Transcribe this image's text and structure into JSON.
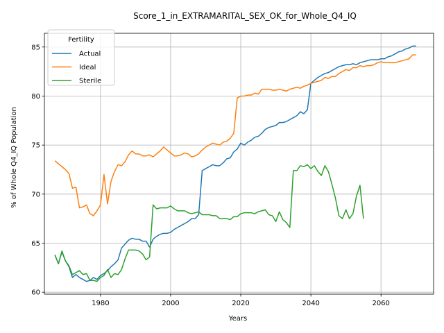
{
  "chart_data": {
    "type": "line",
    "title": "Score_1_in_EXTRAMARITAL_SEX_OK_for_Whole_Q4_IQ",
    "xlabel": "Years",
    "ylabel": "% of Whole Q4_IQ Population",
    "xlim": [
      1964,
      2075
    ],
    "ylim": [
      59.8,
      86.4
    ],
    "xticks": [
      1980,
      2000,
      2020,
      2040,
      2060
    ],
    "yticks": [
      60,
      65,
      70,
      75,
      80,
      85
    ],
    "grid": true,
    "legend": {
      "title": "Fertility",
      "position": "top-left"
    },
    "series": [
      {
        "name": "Actual",
        "color": "#1f77b4",
        "points": [
          [
            1967,
            63.8
          ],
          [
            1968,
            62.9
          ],
          [
            1969,
            64.1
          ],
          [
            1970,
            63.2
          ],
          [
            1971,
            62.6
          ],
          [
            1972,
            61.5
          ],
          [
            1973,
            61.8
          ],
          [
            1974,
            61.5
          ],
          [
            1975,
            61.3
          ],
          [
            1976,
            61.1
          ],
          [
            1977,
            61.2
          ],
          [
            1978,
            61.5
          ],
          [
            1979,
            61.3
          ],
          [
            1980,
            61.7
          ],
          [
            1981,
            61.9
          ],
          [
            1982,
            62.2
          ],
          [
            1983,
            62.6
          ],
          [
            1984,
            62.9
          ],
          [
            1985,
            63.3
          ],
          [
            1986,
            64.5
          ],
          [
            1987,
            64.9
          ],
          [
            1988,
            65.3
          ],
          [
            1989,
            65.5
          ],
          [
            1990,
            65.4
          ],
          [
            1991,
            65.4
          ],
          [
            1992,
            65.2
          ],
          [
            1993,
            65.2
          ],
          [
            1994,
            64.6
          ],
          [
            1995,
            65.4
          ],
          [
            1996,
            65.7
          ],
          [
            1997,
            65.9
          ],
          [
            1998,
            66.0
          ],
          [
            1999,
            66.0
          ],
          [
            2000,
            66.1
          ],
          [
            2001,
            66.4
          ],
          [
            2002,
            66.6
          ],
          [
            2003,
            66.8
          ],
          [
            2004,
            67.0
          ],
          [
            2005,
            67.2
          ],
          [
            2006,
            67.5
          ],
          [
            2007,
            67.5
          ],
          [
            2008,
            67.9
          ],
          [
            2009,
            72.4
          ],
          [
            2010,
            72.6
          ],
          [
            2011,
            72.8
          ],
          [
            2012,
            73.0
          ],
          [
            2013,
            72.9
          ],
          [
            2014,
            72.9
          ],
          [
            2015,
            73.2
          ],
          [
            2016,
            73.6
          ],
          [
            2017,
            73.7
          ],
          [
            2018,
            74.3
          ],
          [
            2019,
            74.6
          ],
          [
            2020,
            75.2
          ],
          [
            2021,
            75.0
          ],
          [
            2022,
            75.3
          ],
          [
            2023,
            75.5
          ],
          [
            2024,
            75.8
          ],
          [
            2025,
            75.9
          ],
          [
            2026,
            76.2
          ],
          [
            2027,
            76.6
          ],
          [
            2028,
            76.8
          ],
          [
            2029,
            76.9
          ],
          [
            2030,
            77.0
          ],
          [
            2031,
            77.3
          ],
          [
            2032,
            77.3
          ],
          [
            2033,
            77.4
          ],
          [
            2034,
            77.6
          ],
          [
            2035,
            77.8
          ],
          [
            2036,
            78.0
          ],
          [
            2037,
            78.4
          ],
          [
            2038,
            78.2
          ],
          [
            2039,
            78.6
          ],
          [
            2040,
            81.3
          ],
          [
            2041,
            81.6
          ],
          [
            2042,
            81.9
          ],
          [
            2043,
            82.1
          ],
          [
            2044,
            82.3
          ],
          [
            2045,
            82.4
          ],
          [
            2046,
            82.6
          ],
          [
            2047,
            82.8
          ],
          [
            2048,
            83.0
          ],
          [
            2049,
            83.1
          ],
          [
            2050,
            83.2
          ],
          [
            2051,
            83.2
          ],
          [
            2052,
            83.3
          ],
          [
            2053,
            83.2
          ],
          [
            2054,
            83.4
          ],
          [
            2055,
            83.5
          ],
          [
            2056,
            83.6
          ],
          [
            2057,
            83.7
          ],
          [
            2058,
            83.7
          ],
          [
            2059,
            83.7
          ],
          [
            2060,
            83.8
          ],
          [
            2061,
            83.8
          ],
          [
            2062,
            84.0
          ],
          [
            2063,
            84.1
          ],
          [
            2064,
            84.3
          ],
          [
            2065,
            84.5
          ],
          [
            2066,
            84.6
          ],
          [
            2067,
            84.8
          ],
          [
            2068,
            84.9
          ],
          [
            2069,
            85.1
          ],
          [
            2070,
            85.1
          ]
        ]
      },
      {
        "name": "Ideal",
        "color": "#ff7f0e",
        "points": [
          [
            1967,
            73.4
          ],
          [
            1968,
            73.1
          ],
          [
            1969,
            72.8
          ],
          [
            1970,
            72.5
          ],
          [
            1971,
            72.1
          ],
          [
            1972,
            70.6
          ],
          [
            1973,
            70.7
          ],
          [
            1974,
            68.6
          ],
          [
            1975,
            68.7
          ],
          [
            1976,
            68.9
          ],
          [
            1977,
            68.0
          ],
          [
            1978,
            67.8
          ],
          [
            1979,
            68.3
          ],
          [
            1980,
            68.9
          ],
          [
            1981,
            72.0
          ],
          [
            1982,
            69.0
          ],
          [
            1983,
            71.3
          ],
          [
            1984,
            72.3
          ],
          [
            1985,
            73.0
          ],
          [
            1986,
            72.9
          ],
          [
            1987,
            73.3
          ],
          [
            1988,
            74.0
          ],
          [
            1989,
            74.4
          ],
          [
            1990,
            74.1
          ],
          [
            1991,
            74.1
          ],
          [
            1992,
            73.9
          ],
          [
            1993,
            73.9
          ],
          [
            1994,
            74.0
          ],
          [
            1995,
            73.8
          ],
          [
            1996,
            74.1
          ],
          [
            1997,
            74.4
          ],
          [
            1998,
            74.8
          ],
          [
            1999,
            74.5
          ],
          [
            2000,
            74.2
          ],
          [
            2001,
            73.9
          ],
          [
            2002,
            73.9
          ],
          [
            2003,
            74.0
          ],
          [
            2004,
            74.2
          ],
          [
            2005,
            74.1
          ],
          [
            2006,
            73.8
          ],
          [
            2007,
            73.9
          ],
          [
            2008,
            74.1
          ],
          [
            2009,
            74.5
          ],
          [
            2010,
            74.8
          ],
          [
            2011,
            75.0
          ],
          [
            2012,
            75.2
          ],
          [
            2013,
            75.1
          ],
          [
            2014,
            75.0
          ],
          [
            2015,
            75.3
          ],
          [
            2016,
            75.4
          ],
          [
            2017,
            75.7
          ],
          [
            2018,
            76.2
          ],
          [
            2019,
            79.8
          ],
          [
            2020,
            80.0
          ],
          [
            2021,
            80.0
          ],
          [
            2022,
            80.1
          ],
          [
            2023,
            80.1
          ],
          [
            2024,
            80.3
          ],
          [
            2025,
            80.2
          ],
          [
            2026,
            80.7
          ],
          [
            2027,
            80.7
          ],
          [
            2028,
            80.7
          ],
          [
            2029,
            80.6
          ],
          [
            2030,
            80.6
          ],
          [
            2031,
            80.7
          ],
          [
            2032,
            80.6
          ],
          [
            2033,
            80.5
          ],
          [
            2034,
            80.7
          ],
          [
            2035,
            80.8
          ],
          [
            2036,
            80.9
          ],
          [
            2037,
            80.8
          ],
          [
            2038,
            81.0
          ],
          [
            2039,
            81.1
          ],
          [
            2040,
            81.3
          ],
          [
            2041,
            81.4
          ],
          [
            2042,
            81.5
          ],
          [
            2043,
            81.6
          ],
          [
            2044,
            81.9
          ],
          [
            2045,
            81.8
          ],
          [
            2046,
            82.0
          ],
          [
            2047,
            82.0
          ],
          [
            2048,
            82.3
          ],
          [
            2049,
            82.5
          ],
          [
            2050,
            82.7
          ],
          [
            2051,
            82.6
          ],
          [
            2052,
            82.9
          ],
          [
            2053,
            82.9
          ],
          [
            2054,
            83.1
          ],
          [
            2055,
            83.0
          ],
          [
            2056,
            83.1
          ],
          [
            2057,
            83.1
          ],
          [
            2058,
            83.2
          ],
          [
            2059,
            83.4
          ],
          [
            2060,
            83.5
          ],
          [
            2061,
            83.4
          ],
          [
            2062,
            83.4
          ],
          [
            2063,
            83.4
          ],
          [
            2064,
            83.4
          ],
          [
            2065,
            83.5
          ],
          [
            2066,
            83.6
          ],
          [
            2067,
            83.7
          ],
          [
            2068,
            83.8
          ],
          [
            2069,
            84.2
          ],
          [
            2070,
            84.2
          ]
        ]
      },
      {
        "name": "Sterile",
        "color": "#2ca02c",
        "points": [
          [
            1967,
            63.8
          ],
          [
            1968,
            62.9
          ],
          [
            1969,
            64.2
          ],
          [
            1970,
            63.2
          ],
          [
            1971,
            62.7
          ],
          [
            1972,
            61.8
          ],
          [
            1973,
            62.0
          ],
          [
            1974,
            62.2
          ],
          [
            1975,
            61.8
          ],
          [
            1976,
            61.9
          ],
          [
            1977,
            61.2
          ],
          [
            1978,
            61.2
          ],
          [
            1979,
            61.1
          ],
          [
            1980,
            61.5
          ],
          [
            1981,
            61.7
          ],
          [
            1982,
            62.3
          ],
          [
            1983,
            61.5
          ],
          [
            1984,
            61.9
          ],
          [
            1985,
            61.8
          ],
          [
            1986,
            62.3
          ],
          [
            1987,
            63.4
          ],
          [
            1988,
            64.3
          ],
          [
            1989,
            64.3
          ],
          [
            1990,
            64.3
          ],
          [
            1991,
            64.2
          ],
          [
            1992,
            63.9
          ],
          [
            1993,
            63.3
          ],
          [
            1994,
            63.6
          ],
          [
            1995,
            68.9
          ],
          [
            1996,
            68.5
          ],
          [
            1997,
            68.6
          ],
          [
            1998,
            68.6
          ],
          [
            1999,
            68.6
          ],
          [
            2000,
            68.8
          ],
          [
            2001,
            68.5
          ],
          [
            2002,
            68.3
          ],
          [
            2003,
            68.3
          ],
          [
            2004,
            68.3
          ],
          [
            2005,
            68.1
          ],
          [
            2006,
            68.0
          ],
          [
            2007,
            68.1
          ],
          [
            2008,
            68.2
          ],
          [
            2009,
            67.9
          ],
          [
            2010,
            67.9
          ],
          [
            2011,
            67.9
          ],
          [
            2012,
            67.8
          ],
          [
            2013,
            67.8
          ],
          [
            2014,
            67.5
          ],
          [
            2015,
            67.5
          ],
          [
            2016,
            67.5
          ],
          [
            2017,
            67.4
          ],
          [
            2018,
            67.7
          ],
          [
            2019,
            67.7
          ],
          [
            2020,
            68.0
          ],
          [
            2021,
            68.1
          ],
          [
            2022,
            68.1
          ],
          [
            2023,
            68.1
          ],
          [
            2024,
            68.0
          ],
          [
            2025,
            68.2
          ],
          [
            2026,
            68.3
          ],
          [
            2027,
            68.4
          ],
          [
            2028,
            67.9
          ],
          [
            2029,
            67.8
          ],
          [
            2030,
            67.2
          ],
          [
            2031,
            68.2
          ],
          [
            2032,
            67.4
          ],
          [
            2033,
            67.1
          ],
          [
            2034,
            66.6
          ],
          [
            2035,
            72.4
          ],
          [
            2036,
            72.4
          ],
          [
            2037,
            72.9
          ],
          [
            2038,
            72.8
          ],
          [
            2039,
            73.0
          ],
          [
            2040,
            72.6
          ],
          [
            2041,
            72.9
          ],
          [
            2042,
            72.3
          ],
          [
            2043,
            71.9
          ],
          [
            2044,
            72.9
          ],
          [
            2045,
            72.3
          ],
          [
            2046,
            71.0
          ],
          [
            2047,
            69.6
          ],
          [
            2048,
            67.8
          ],
          [
            2049,
            67.5
          ],
          [
            2050,
            68.4
          ],
          [
            2051,
            67.5
          ],
          [
            2052,
            68.0
          ],
          [
            2053,
            69.8
          ],
          [
            2054,
            70.9
          ],
          [
            2055,
            67.5
          ]
        ]
      }
    ]
  }
}
